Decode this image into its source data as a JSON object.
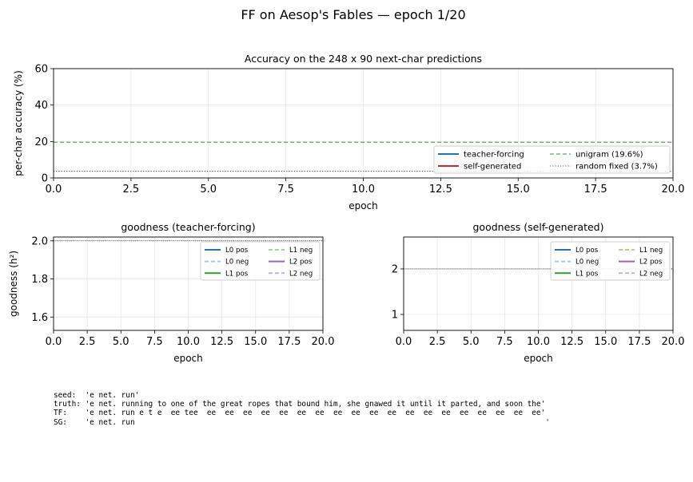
{
  "suptitle": "FF on Aesop's Fables  —  epoch 1/20",
  "chart_data": [
    {
      "type": "line",
      "title": "Accuracy on the 248 x 90 next-char predictions",
      "xlabel": "epoch",
      "ylabel": "per-char accuracy (%)",
      "xlim": [
        0,
        20
      ],
      "ylim": [
        0,
        60
      ],
      "xticks": [
        "0.0",
        "2.5",
        "5.0",
        "7.5",
        "10.0",
        "12.5",
        "15.0",
        "17.5",
        "20.0"
      ],
      "yticks": [
        "0",
        "20",
        "40",
        "60"
      ],
      "grid": true,
      "legend_position": "lower-right",
      "legend_columns": 2,
      "series": [
        {
          "name": "teacher-forcing",
          "color": "#1f77b4",
          "style": "solid",
          "x": [],
          "y": []
        },
        {
          "name": "self-generated",
          "color": "#d62728",
          "style": "solid",
          "x": [],
          "y": []
        },
        {
          "name": "unigram (19.6%)",
          "color": "#2ca02c",
          "style": "dashed",
          "hline": 19.6
        },
        {
          "name": "random fixed (3.7%)",
          "color": "#555555",
          "style": "dotted",
          "hline": 3.7
        }
      ]
    },
    {
      "type": "line",
      "title": "goodness (teacher-forcing)",
      "xlabel": "epoch",
      "ylabel": "goodness (h²)",
      "xlim": [
        0,
        20
      ],
      "ylim": [
        1.53,
        2.02
      ],
      "xticks": [
        "0.0",
        "2.5",
        "5.0",
        "7.5",
        "10.0",
        "12.5",
        "15.0",
        "17.5",
        "20.0"
      ],
      "yticks": [
        "1.6",
        "1.8",
        "2.0"
      ],
      "grid": true,
      "legend_position": "upper-right",
      "legend_columns": 2,
      "threshold": 2.0,
      "series": [
        {
          "name": "L0 pos",
          "color": "#1f77b4",
          "style": "solid"
        },
        {
          "name": "L0 neg",
          "color": "#aec7e8",
          "style": "dashed"
        },
        {
          "name": "L1 pos",
          "color": "#2ca02c",
          "style": "solid"
        },
        {
          "name": "L1 neg",
          "color": "#98df8a",
          "style": "dashed"
        },
        {
          "name": "L2 pos",
          "color": "#9467bd",
          "style": "solid"
        },
        {
          "name": "L2 neg",
          "color": "#c5b0d5",
          "style": "dashed"
        }
      ]
    },
    {
      "type": "line",
      "title": "goodness (self-generated)",
      "xlabel": "epoch",
      "ylabel": "",
      "xlim": [
        0,
        20
      ],
      "ylim": [
        0.65,
        2.7
      ],
      "xticks": [
        "0.0",
        "2.5",
        "5.0",
        "7.5",
        "10.0",
        "12.5",
        "15.0",
        "17.5",
        "20.0"
      ],
      "yticks": [
        "1",
        "2"
      ],
      "grid": true,
      "legend_position": "upper-right",
      "legend_columns": 2,
      "threshold": 2.0,
      "series": [
        {
          "name": "L0 pos",
          "color": "#1f77b4",
          "style": "solid"
        },
        {
          "name": "L0 neg",
          "color": "#aec7e8",
          "style": "dashed"
        },
        {
          "name": "L1 pos",
          "color": "#2ca02c",
          "style": "solid"
        },
        {
          "name": "L1 neg",
          "color": "#98df8a",
          "style": "dashed"
        },
        {
          "name": "L2 pos",
          "color": "#9467bd",
          "style": "solid"
        },
        {
          "name": "L2 neg",
          "color": "#c5b0d5",
          "style": "dashed"
        }
      ]
    }
  ],
  "sample": {
    "seed": "seed:  'e net. run'",
    "truth": "truth: 'e net. running to one of the great ropes that bound him, she gnawed it until it parted, and soon the'",
    "tf": "TF:    'e net. run e t e  ee tee  ee  ee  ee  ee  ee  ee  ee  ee  ee  ee  ee  ee  ee  ee  ee  ee  ee  ee  ee'",
    "sg": "SG:    'e net. run                                                                                           '"
  }
}
